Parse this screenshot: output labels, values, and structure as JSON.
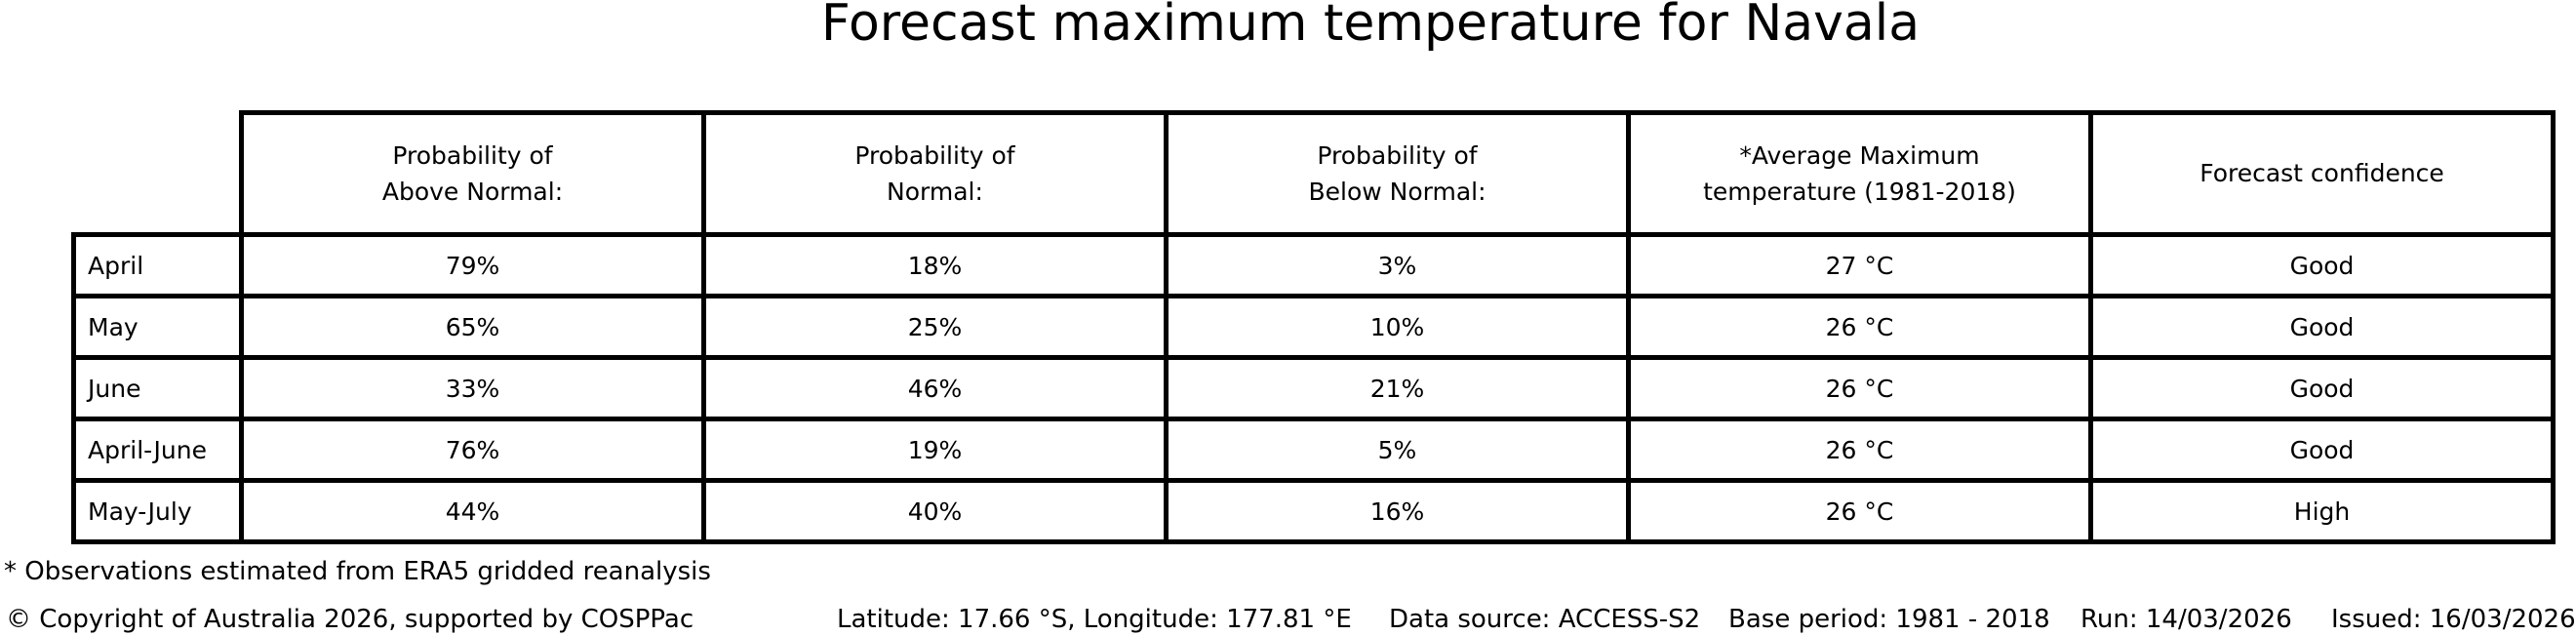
{
  "title": "Forecast maximum temperature for Navala",
  "chart_data": {
    "type": "table",
    "title": "Forecast maximum temperature for Navala",
    "columns": [
      "",
      "Probability of Above Normal:",
      "Probability of Normal:",
      "Probability of Below Normal:",
      "*Average Maximum temperature (1981-2018)",
      "Forecast confidence"
    ],
    "rows": [
      [
        "April",
        "79%",
        "18%",
        "3%",
        "27 °C",
        "Good"
      ],
      [
        "May",
        "65%",
        "25%",
        "10%",
        "26 °C",
        "Good"
      ],
      [
        "June",
        "33%",
        "46%",
        "21%",
        "26 °C",
        "Good"
      ],
      [
        "April-June",
        "76%",
        "19%",
        "5%",
        "26 °C",
        "Good"
      ],
      [
        "May-July",
        "44%",
        "40%",
        "16%",
        "26 °C",
        "High"
      ]
    ]
  },
  "table": {
    "headers": [
      "Probability of\nAbove Normal:",
      "Probability of\nNormal:",
      "Probability of\nBelow Normal:",
      "*Average Maximum\ntemperature (1981-2018)",
      "Forecast confidence"
    ]
  },
  "footnote": "* Observations estimated from ERA5 gridded reanalysis",
  "footer": {
    "copyright": "© Copyright of Australia 2026, supported by COSPPac",
    "location": "Latitude: 17.66 °S, Longitude: 177.81 °E",
    "data_source": "Data source: ACCESS-S2",
    "base_period": "Base period: 1981 - 2018",
    "run": "Run: 14/03/2026",
    "issued": "Issued: 16/03/2026"
  },
  "colors": {
    "text": "#000000",
    "background": "#ffffff",
    "border": "#000000"
  }
}
